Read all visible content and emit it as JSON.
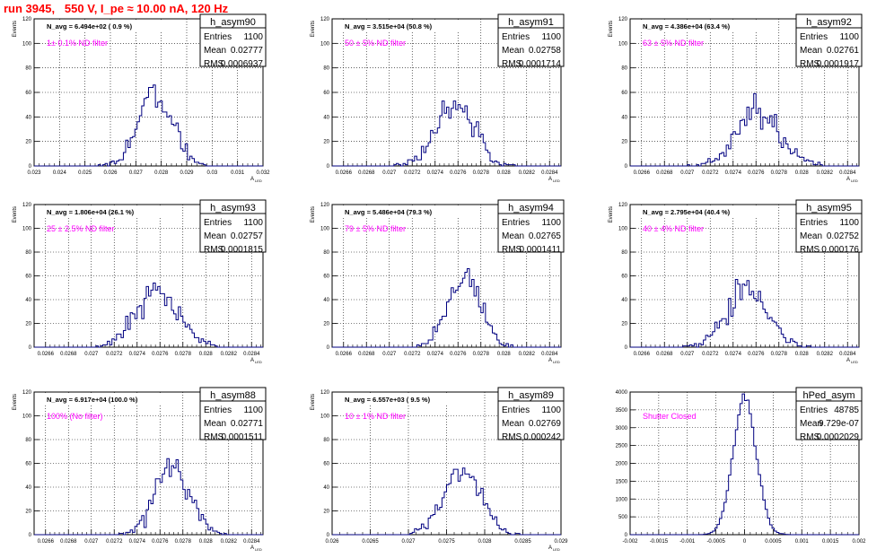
{
  "page": {
    "title": "run 3945,   550 V, I_pe ≈ 10.00 nA, 120 Hz",
    "colors": {
      "title": "#ff0000",
      "annotation": "#ff00ff",
      "histogram_line": "#000080",
      "grid": "#000000"
    }
  },
  "chart_data": [
    {
      "type": "histogram",
      "name": "h_asym90",
      "stats": {
        "entries_label": "Entries",
        "entries": "1100",
        "mean_label": "Mean",
        "mean": "0.02777",
        "rms_label": "RMS",
        "rms": "0.0006937"
      },
      "navg_text": "N_avg = 6.494e+02 ( 0.9 %)",
      "annotation": "1± 0.1% ND filter",
      "xlabel": "A",
      "xlabel_sub": "LED",
      "ylabel": "Events",
      "xlim": [
        0.023,
        0.032
      ],
      "ylim": [
        0,
        120
      ],
      "x_ticks": [
        "0.023",
        "0.024",
        "0.025",
        "0.026",
        "0.027",
        "0.028",
        "0.029",
        "0.03",
        "0.031",
        "0.032"
      ],
      "y_ticks": [
        "0",
        "20",
        "40",
        "60",
        "80",
        "100",
        "120"
      ],
      "grid": true
    },
    {
      "type": "histogram",
      "name": "h_asym91",
      "stats": {
        "entries_label": "Entries",
        "entries": "1100",
        "mean_label": "Mean",
        "mean": "0.02758",
        "rms_label": "RMS",
        "rms": "0.0001714"
      },
      "navg_text": "N_avg = 3.515e+04 (50.8 %)",
      "annotation": "50 ± 5% ND filter",
      "xlabel": "A",
      "xlabel_sub": "LED",
      "ylabel": "Events",
      "xlim": [
        0.0265,
        0.0285
      ],
      "ylim": [
        0,
        120
      ],
      "x_ticks": [
        "0.0266",
        "0.0268",
        "0.027",
        "0.0272",
        "0.0274",
        "0.0276",
        "0.0278",
        "0.028",
        "0.0282",
        "0.0284"
      ],
      "y_ticks": [
        "0",
        "20",
        "40",
        "60",
        "80",
        "100",
        "120"
      ],
      "grid": true
    },
    {
      "type": "histogram",
      "name": "h_asym92",
      "stats": {
        "entries_label": "Entries",
        "entries": "1100",
        "mean_label": "Mean",
        "mean": "0.02761",
        "rms_label": "RMS",
        "rms": "0.0001917"
      },
      "navg_text": "N_avg = 4.386e+04 (63.4 %)",
      "annotation": "63 ± 5% ND filter",
      "xlabel": "A",
      "xlabel_sub": "LED",
      "ylabel": "Events",
      "xlim": [
        0.0265,
        0.0285
      ],
      "ylim": [
        0,
        120
      ],
      "x_ticks": [
        "0.0266",
        "0.0268",
        "0.027",
        "0.0272",
        "0.0274",
        "0.0276",
        "0.0278",
        "0.028",
        "0.0282",
        "0.0284"
      ],
      "y_ticks": [
        "0",
        "20",
        "40",
        "60",
        "80",
        "100",
        "120"
      ],
      "grid": true
    },
    {
      "type": "histogram",
      "name": "h_asym93",
      "stats": {
        "entries_label": "Entries",
        "entries": "1100",
        "mean_label": "Mean",
        "mean": "0.02757",
        "rms_label": "RMS",
        "rms": "0.0001815"
      },
      "navg_text": "N_avg = 1.806e+04 (26.1 %)",
      "annotation": "25 ± 2.5% ND filter",
      "xlabel": "A",
      "xlabel_sub": "LED",
      "ylabel": "Events",
      "xlim": [
        0.0265,
        0.0285
      ],
      "ylim": [
        0,
        120
      ],
      "x_ticks": [
        "0.0266",
        "0.0268",
        "0.027",
        "0.0272",
        "0.0274",
        "0.0276",
        "0.0278",
        "0.028",
        "0.0282",
        "0.0284"
      ],
      "y_ticks": [
        "0",
        "20",
        "40",
        "60",
        "80",
        "100",
        "120"
      ],
      "grid": true
    },
    {
      "type": "histogram",
      "name": "h_asym94",
      "stats": {
        "entries_label": "Entries",
        "entries": "1100",
        "mean_label": "Mean",
        "mean": "0.02765",
        "rms_label": "RMS",
        "rms": "0.0001411"
      },
      "navg_text": "N_avg = 5.486e+04 (79.3 %)",
      "annotation": "79 ± 5% ND filter",
      "xlabel": "A",
      "xlabel_sub": "LED",
      "ylabel": "Events",
      "xlim": [
        0.0265,
        0.0285
      ],
      "ylim": [
        0,
        120
      ],
      "x_ticks": [
        "0.0266",
        "0.0268",
        "0.027",
        "0.0272",
        "0.0274",
        "0.0276",
        "0.0278",
        "0.028",
        "0.0282",
        "0.0284"
      ],
      "y_ticks": [
        "0",
        "20",
        "40",
        "60",
        "80",
        "100",
        "120"
      ],
      "grid": true
    },
    {
      "type": "histogram",
      "name": "h_asym95",
      "stats": {
        "entries_label": "Entries",
        "entries": "1100",
        "mean_label": "Mean",
        "mean": "0.02752",
        "rms_label": "RMS",
        "rms": "0.000176"
      },
      "navg_text": "N_avg = 2.795e+04 (40.4 %)",
      "annotation": "40 ± 4% ND filter",
      "xlabel": "A",
      "xlabel_sub": "LED",
      "ylabel": "Events",
      "xlim": [
        0.0265,
        0.0285
      ],
      "ylim": [
        0,
        120
      ],
      "x_ticks": [
        "0.0266",
        "0.0268",
        "0.027",
        "0.0272",
        "0.0274",
        "0.0276",
        "0.0278",
        "0.028",
        "0.0282",
        "0.0284"
      ],
      "y_ticks": [
        "0",
        "20",
        "40",
        "60",
        "80",
        "100",
        "120"
      ],
      "grid": true
    },
    {
      "type": "histogram",
      "name": "h_asym88",
      "stats": {
        "entries_label": "Entries",
        "entries": "1100",
        "mean_label": "Mean",
        "mean": "0.02771",
        "rms_label": "RMS",
        "rms": "0.0001511"
      },
      "navg_text": "N_avg = 6.917e+04 (100.0 %)",
      "annotation": "100% (No filter)",
      "xlabel": "A",
      "xlabel_sub": "LED",
      "ylabel": "Events",
      "xlim": [
        0.0265,
        0.0285
      ],
      "ylim": [
        0,
        120
      ],
      "x_ticks": [
        "0.0266",
        "0.0268",
        "0.027",
        "0.0272",
        "0.0274",
        "0.0276",
        "0.0278",
        "0.028",
        "0.0282",
        "0.0284"
      ],
      "y_ticks": [
        "0",
        "20",
        "40",
        "60",
        "80",
        "100",
        "120"
      ],
      "grid": true
    },
    {
      "type": "histogram",
      "name": "h_asym89",
      "stats": {
        "entries_label": "Entries",
        "entries": "1100",
        "mean_label": "Mean",
        "mean": "0.02769",
        "rms_label": "RMS",
        "rms": "0.000242"
      },
      "navg_text": "N_avg = 6.557e+03 ( 9.5 %)",
      "annotation": "10 ± 1% ND filter",
      "xlabel": "A",
      "xlabel_sub": "LED",
      "ylabel": "Events",
      "xlim": [
        0.026,
        0.029
      ],
      "ylim": [
        0,
        120
      ],
      "x_ticks": [
        "0.026",
        "0.0265",
        "0.027",
        "0.0275",
        "0.028",
        "0.0285",
        "0.029"
      ],
      "y_ticks": [
        "0",
        "20",
        "40",
        "60",
        "80",
        "100",
        "120"
      ],
      "grid": true
    },
    {
      "type": "histogram",
      "name": "hPed_asym",
      "stats": {
        "entries_label": "Entries",
        "entries": "48785",
        "mean_label": "Mean",
        "mean": "9.729e-07",
        "rms_label": "RMS",
        "rms": "0.0002029"
      },
      "navg_text": "",
      "annotation": "Shutter Closed",
      "xlabel": "",
      "xlabel_sub": "",
      "ylabel": "",
      "xlim": [
        -0.002,
        0.002
      ],
      "ylim": [
        0,
        4000
      ],
      "x_ticks": [
        "-0.002",
        "-0.0015",
        "-0.001",
        "-0.0005",
        "0",
        "0.0005",
        "0.001",
        "0.0015",
        "0.002"
      ],
      "y_ticks": [
        "0",
        "500",
        "1000",
        "1500",
        "2000",
        "2500",
        "3000",
        "3500",
        "4000"
      ],
      "grid": true
    }
  ]
}
